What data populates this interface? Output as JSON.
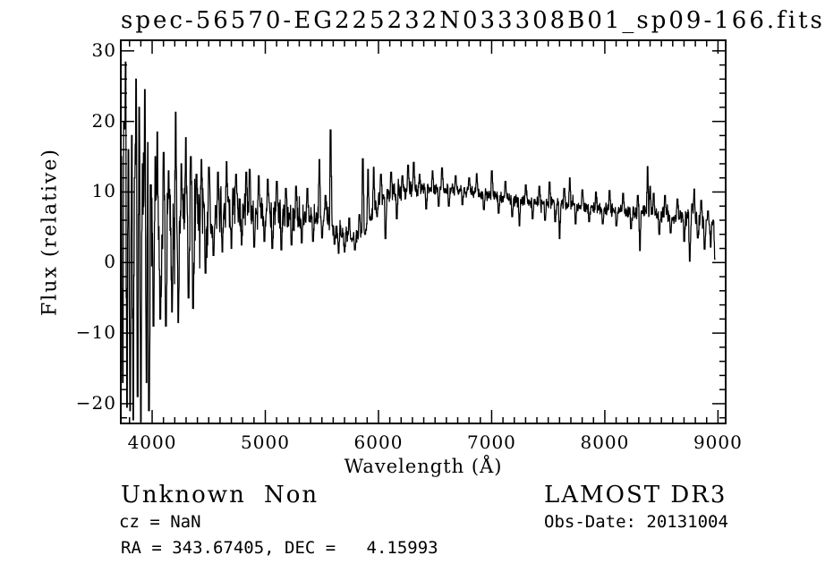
{
  "window": {
    "background": "#ffffff",
    "foreground": "#000000"
  },
  "chart_data": {
    "type": "line",
    "title": "spec-56570-EG225232N033308B01_sp09-166.fits",
    "xlabel": "Wavelength (Å)",
    "ylabel": "Flux (relative)",
    "xlim": [
      3723,
      9068
    ],
    "ylim": [
      -22.8,
      31.5
    ],
    "xticks": [
      4000,
      5000,
      6000,
      7000,
      8000,
      9000
    ],
    "yticks": [
      -20,
      -10,
      0,
      10,
      20,
      30
    ],
    "x_minor_step": 100,
    "y_minor_step": 2,
    "grid": false,
    "legend": "none",
    "line_color": "#000000",
    "series": [
      {
        "name": "spectrum",
        "x_start": 3723,
        "x_end": 8980,
        "x_step": 2.5,
        "seed": 1337,
        "continuum": [
          [
            3723,
            -0.5
          ],
          [
            3800,
            0.5
          ],
          [
            3900,
            1.5
          ],
          [
            4000,
            3
          ],
          [
            4100,
            4.2
          ],
          [
            4200,
            5
          ],
          [
            4300,
            5.5
          ],
          [
            4400,
            6.2
          ],
          [
            4500,
            7
          ],
          [
            4600,
            7.4
          ],
          [
            4700,
            7.6
          ],
          [
            4800,
            7.6
          ],
          [
            4900,
            7.5
          ],
          [
            5000,
            7.4
          ],
          [
            5100,
            7
          ],
          [
            5200,
            6.7
          ],
          [
            5300,
            6.6
          ],
          [
            5400,
            6.7
          ],
          [
            5500,
            6.6
          ],
          [
            5560,
            6.2
          ],
          [
            5620,
            4.6
          ],
          [
            5700,
            3.9
          ],
          [
            5780,
            3.8
          ],
          [
            5850,
            4.3
          ],
          [
            5900,
            5.5
          ],
          [
            5950,
            7.4
          ],
          [
            6000,
            9.2
          ],
          [
            6060,
            9.3
          ],
          [
            6120,
            9.9
          ],
          [
            6200,
            10.1
          ],
          [
            6300,
            10.3
          ],
          [
            6400,
            10.4
          ],
          [
            6500,
            10.5
          ],
          [
            6600,
            10.4
          ],
          [
            6700,
            10.2
          ],
          [
            6800,
            10.1
          ],
          [
            6900,
            9.9
          ],
          [
            7000,
            9.6
          ],
          [
            7100,
            9.2
          ],
          [
            7200,
            8.9
          ],
          [
            7300,
            8.7
          ],
          [
            7400,
            8.6
          ],
          [
            7500,
            8.4
          ],
          [
            7600,
            8.3
          ],
          [
            7700,
            8.2
          ],
          [
            7800,
            7.9
          ],
          [
            7900,
            7.7
          ],
          [
            8000,
            7.6
          ],
          [
            8100,
            7.4
          ],
          [
            8200,
            7.2
          ],
          [
            8300,
            7.1
          ],
          [
            8400,
            7.0
          ],
          [
            8500,
            6.9
          ],
          [
            8600,
            6.7
          ],
          [
            8700,
            6.4
          ],
          [
            8800,
            6.1
          ],
          [
            8900,
            5.7
          ],
          [
            8980,
            5.2
          ]
        ],
        "noise_segments": [
          [
            3723,
            3760,
            10
          ],
          [
            3760,
            3980,
            14
          ],
          [
            3980,
            4080,
            9
          ],
          [
            4080,
            4220,
            7
          ],
          [
            4220,
            4400,
            5.5
          ],
          [
            4400,
            4550,
            4
          ],
          [
            4550,
            4750,
            3
          ],
          [
            4750,
            5000,
            2.4
          ],
          [
            5000,
            5300,
            2.2
          ],
          [
            5300,
            5600,
            1.8
          ],
          [
            5600,
            5950,
            1.1
          ],
          [
            5950,
            6300,
            1.2
          ],
          [
            6300,
            7100,
            0.85
          ],
          [
            7100,
            7700,
            0.9
          ],
          [
            7700,
            8300,
            0.85
          ],
          [
            8300,
            8700,
            1.0
          ],
          [
            8700,
            8980,
            1.5
          ]
        ],
        "features": [
          [
            3728,
            15
          ],
          [
            3740,
            -17
          ],
          [
            3752,
            20
          ],
          [
            3765,
            28.4
          ],
          [
            3778,
            -20.5
          ],
          [
            3790,
            16
          ],
          [
            3805,
            -21
          ],
          [
            3820,
            18
          ],
          [
            3833,
            -22.3
          ],
          [
            3845,
            12
          ],
          [
            3858,
            26
          ],
          [
            3872,
            -19
          ],
          [
            3886,
            22
          ],
          [
            3900,
            -22.5
          ],
          [
            3915,
            14
          ],
          [
            3936,
            24.5
          ],
          [
            3950,
            -17
          ],
          [
            3963,
            17
          ],
          [
            3972,
            -21
          ],
          [
            3990,
            11
          ],
          [
            4012,
            -9
          ],
          [
            4028,
            15
          ],
          [
            4046,
            18.5
          ],
          [
            4072,
            -8
          ],
          [
            4102,
            15.6
          ],
          [
            4122,
            -9
          ],
          [
            4145,
            13
          ],
          [
            4175,
            -7
          ],
          [
            4208,
            21.3
          ],
          [
            4230,
            -8.5
          ],
          [
            4258,
            14
          ],
          [
            4298,
            17.7
          ],
          [
            4322,
            -5
          ],
          [
            4342,
            15
          ],
          [
            4362,
            -6.5
          ],
          [
            4392,
            12.5
          ],
          [
            4435,
            14.6
          ],
          [
            4472,
            -1.5
          ],
          [
            4502,
            13.5
          ],
          [
            4542,
            1
          ],
          [
            4582,
            12.8
          ],
          [
            4620,
            1.5
          ],
          [
            4658,
            14.3
          ],
          [
            4700,
            2
          ],
          [
            4742,
            12.5
          ],
          [
            4790,
            2.5
          ],
          [
            4832,
            12.8
          ],
          [
            4862,
            13.2
          ],
          [
            4902,
            2.2
          ],
          [
            4942,
            12.3
          ],
          [
            4992,
            3
          ],
          [
            5022,
            11.8
          ],
          [
            5062,
            2
          ],
          [
            5102,
            11.5
          ],
          [
            5142,
            1.8
          ],
          [
            5182,
            10.5
          ],
          [
            5232,
            2.5
          ],
          [
            5272,
            10.8
          ],
          [
            5322,
            2.8
          ],
          [
            5372,
            10.5
          ],
          [
            5422,
            3
          ],
          [
            5478,
            14.6
          ],
          [
            5502,
            3.5
          ],
          [
            5532,
            9.5
          ],
          [
            5577,
            18.8
          ],
          [
            5612,
            2.6
          ],
          [
            5648,
            1.3
          ],
          [
            5700,
            1.5
          ],
          [
            5742,
            6.3
          ],
          [
            5792,
            1.8
          ],
          [
            5832,
            6.8
          ],
          [
            5862,
            14.7
          ],
          [
            5882,
            4
          ],
          [
            5908,
            13.2
          ],
          [
            5932,
            6
          ],
          [
            5958,
            13.5
          ],
          [
            5988,
            6.5
          ],
          [
            6022,
            12.5
          ],
          [
            6062,
            3.4
          ],
          [
            6112,
            12.8
          ],
          [
            6162,
            6.2
          ],
          [
            6212,
            12.3
          ],
          [
            6262,
            13.8
          ],
          [
            6312,
            14.2
          ],
          [
            6363,
            12.5
          ],
          [
            6422,
            7.6
          ],
          [
            6478,
            13
          ],
          [
            6532,
            8
          ],
          [
            6562,
            13.4
          ],
          [
            6622,
            8
          ],
          [
            6682,
            12.3
          ],
          [
            6742,
            8.2
          ],
          [
            6802,
            12
          ],
          [
            6868,
            12.6
          ],
          [
            6932,
            7.5
          ],
          [
            7002,
            13
          ],
          [
            7062,
            7
          ],
          [
            7122,
            11.5
          ],
          [
            7182,
            6.5
          ],
          [
            7245,
            5.2
          ],
          [
            7302,
            11
          ],
          [
            7362,
            6.2
          ],
          [
            7422,
            10.8
          ],
          [
            7472,
            6
          ],
          [
            7512,
            11.4
          ],
          [
            7562,
            5.8
          ],
          [
            7600,
            3.4
          ],
          [
            7642,
            10.5
          ],
          [
            7690,
            12
          ],
          [
            7742,
            5.5
          ],
          [
            7802,
            10.3
          ],
          [
            7862,
            5.8
          ],
          [
            7922,
            10
          ],
          [
            7982,
            5.5
          ],
          [
            8042,
            10.2
          ],
          [
            8102,
            5.2
          ],
          [
            8162,
            9.8
          ],
          [
            8232,
            4.8
          ],
          [
            8292,
            9.5
          ],
          [
            8310,
            1.7
          ],
          [
            8378,
            13.6
          ],
          [
            8400,
            10.8
          ],
          [
            8432,
            9.8
          ],
          [
            8482,
            4
          ],
          [
            8532,
            9.5
          ],
          [
            8582,
            4.2
          ],
          [
            8642,
            9
          ],
          [
            8702,
            3
          ],
          [
            8750,
            0.2
          ],
          [
            8772,
            8.3
          ],
          [
            8790,
            10.4
          ],
          [
            8822,
            3.5
          ],
          [
            8852,
            8.8
          ],
          [
            8882,
            1.9
          ],
          [
            8912,
            7.3
          ],
          [
            8936,
            2.2
          ],
          [
            8958,
            6
          ],
          [
            8974,
            0.5
          ]
        ]
      }
    ]
  },
  "annotations": {
    "class_label": "Unknown",
    "subclass_label": "Non",
    "cz_line": "cz = NaN",
    "radec_line": "RA = 343.67405, DEC =   4.15993",
    "survey_label": "LAMOST DR3",
    "obsdate_line": "Obs-Date: 20131004"
  }
}
